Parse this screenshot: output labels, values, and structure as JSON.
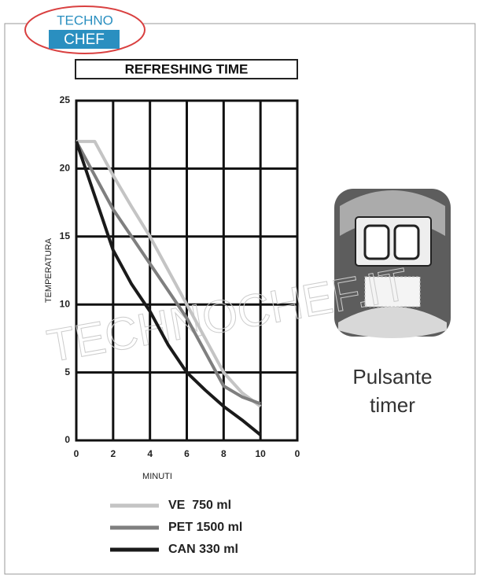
{
  "logo": {
    "top": "TECHNO",
    "bottom": "CHEF"
  },
  "watermark": "TECHNOCHEF.IT",
  "caption": {
    "lines": [
      "Pulsante",
      "timer"
    ]
  },
  "chart_data": {
    "type": "line",
    "title": "REFRESHING TIME",
    "x_label": "MINUTI",
    "y_label": "TEMPERATURA",
    "x": [
      0,
      1,
      2,
      3,
      4,
      5,
      6,
      7,
      8,
      9,
      10
    ],
    "series": [
      {
        "name": "VE  750 ml",
        "color": "#c4c4c4",
        "values": [
          22,
          22,
          19.5,
          17.2,
          15,
          12.5,
          10,
          7.5,
          5,
          3.5,
          2.5
        ]
      },
      {
        "name": "PET 1500 ml",
        "color": "#7f7f7f",
        "values": [
          22,
          19.5,
          17,
          15,
          13,
          11,
          9,
          6.5,
          4,
          3.2,
          2.7
        ]
      },
      {
        "name": "CAN 330 ml",
        "color": "#1a1a1a",
        "values": [
          22,
          18,
          14,
          11.5,
          9.5,
          7,
          5,
          3.7,
          2.5,
          1.5,
          0.4
        ]
      }
    ],
    "xlim": [
      0,
      12
    ],
    "xticks": [
      0,
      2,
      4,
      6,
      8,
      10,
      {
        "value": 12,
        "label": "0"
      }
    ],
    "ylim": [
      0,
      25
    ],
    "yticks": [
      0,
      5,
      10,
      15,
      20,
      25
    ],
    "grid": true
  }
}
